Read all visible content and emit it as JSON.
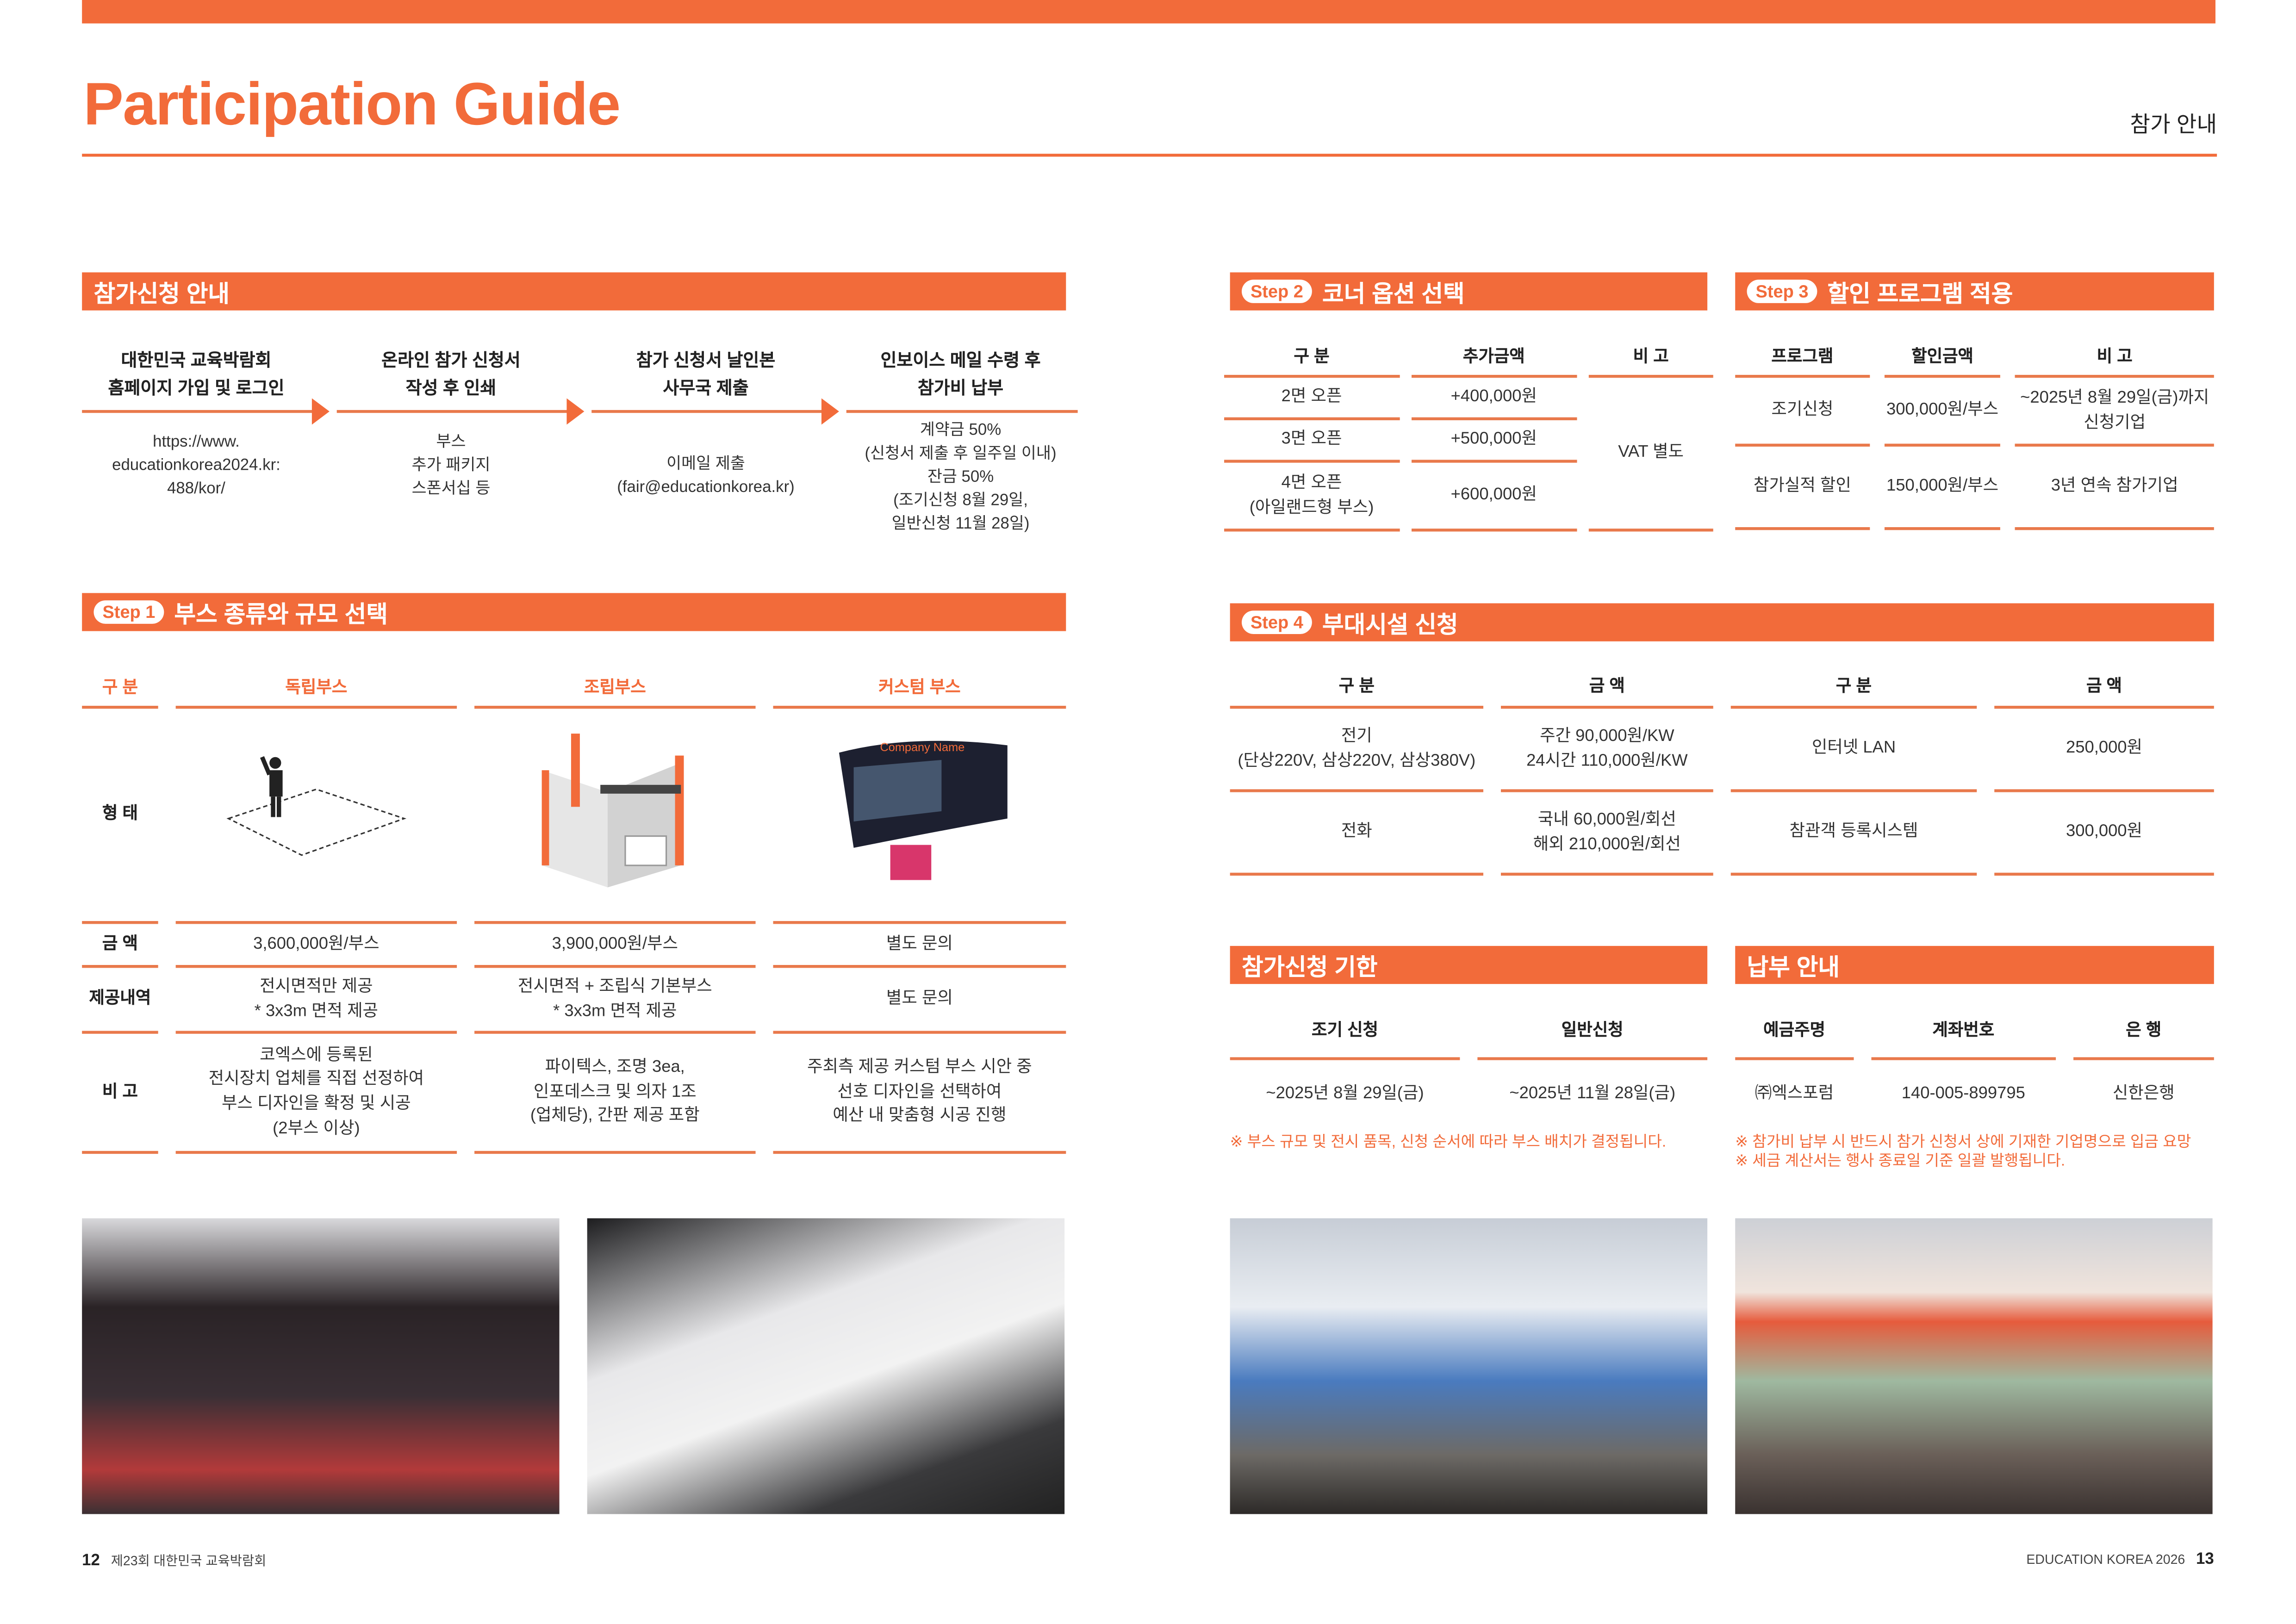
{
  "header": {
    "title": "Participation Guide",
    "subtitle": "참가 안내",
    "accent_color": "#F26B3A"
  },
  "process": {
    "heading": "참가신청 안내",
    "steps": [
      {
        "title": "대한민국 교육박람회\n홈페이지 가입 및 로그인",
        "detail": "https://www.\neducationkorea2024.kr:\n488/kor/"
      },
      {
        "title": "온라인 참가 신청서\n작성 후 인쇄",
        "detail": "부스\n추가 패키지\n스폰서십 등"
      },
      {
        "title": "참가 신청서 날인본\n사무국 제출",
        "detail": "이메일 제출\n(fair@educationkorea.kr)"
      },
      {
        "title": "인보이스 메일 수령 후\n참가비 납부",
        "detail": "계약금 50%\n(신청서 제출 후 일주일 이내)\n잔금 50%\n(조기신청 8월 29일,\n일반신청 11월 28일)"
      }
    ]
  },
  "step1": {
    "badge": "Step 1",
    "heading": "부스 종류와 규모 선택",
    "columns": [
      "구 분",
      "독립부스",
      "조립부스",
      "커스텀 부스"
    ],
    "shape_label": "형 태",
    "custom_booth_sign": "Company Name",
    "rows": [
      [
        "금 액",
        "3,600,000원/부스",
        "3,900,000원/부스",
        "별도 문의"
      ],
      [
        "제공내역",
        "전시면적만 제공\n* 3x3m 면적 제공",
        "전시면적 + 조립식 기본부스\n* 3x3m 면적 제공",
        "별도 문의"
      ],
      [
        "비 고",
        "코엑스에 등록된\n전시장치 업체를 직접 선정하여\n부스 디자인을 확정 및 시공\n(2부스 이상)",
        "파이텍스, 조명 3ea,\n인포데스크 및 의자 1조\n(업체당), 간판 제공 포함",
        "주최측 제공 커스텀 부스 시안 중\n선호 디자인을 선택하여\n예산 내 맞춤형 시공 진행"
      ]
    ]
  },
  "step2": {
    "badge": "Step 2",
    "heading": "코너 옵션 선택",
    "columns": [
      "구 분",
      "추가금액",
      "비 고"
    ],
    "rows": [
      [
        "2면 오픈",
        "+400,000원"
      ],
      [
        "3면 오픈",
        "+500,000원"
      ],
      [
        "4면 오픈\n(아일랜드형 부스)",
        "+600,000원"
      ]
    ],
    "note": "VAT 별도"
  },
  "step3": {
    "badge": "Step 3",
    "heading": "할인 프로그램 적용",
    "columns": [
      "프로그램",
      "할인금액",
      "비 고"
    ],
    "rows": [
      [
        "조기신청",
        "300,000원/부스",
        "~2025년 8월 29일(금)까지\n신청기업"
      ],
      [
        "참가실적 할인",
        "150,000원/부스",
        "3년 연속 참가기업"
      ]
    ]
  },
  "step4": {
    "badge": "Step 4",
    "heading": "부대시설 신청",
    "columns": [
      "구 분",
      "금 액",
      "구 분",
      "금 액"
    ],
    "rows": [
      [
        "전기\n(단상220V, 삼상220V, 삼상380V)",
        "주간 90,000원/KW\n24시간 110,000원/KW",
        "인터넷 LAN",
        "250,000원"
      ],
      [
        "전화",
        "국내 60,000원/회선\n해외 210,000원/회선",
        "참관객 등록시스템",
        "300,000원"
      ]
    ]
  },
  "deadline": {
    "heading": "참가신청 기한",
    "columns": [
      "조기 신청",
      "일반신청"
    ],
    "rows": [
      [
        "~2025년 8월 29일(금)",
        "~2025년 11월 28일(금)"
      ]
    ],
    "note": "※ 부스 규모 및 전시 품목, 신청 순서에 따라 부스 배치가 결정됩니다."
  },
  "payment": {
    "heading": "납부 안내",
    "columns": [
      "예금주명",
      "계좌번호",
      "은 행"
    ],
    "rows": [
      [
        "㈜엑스포럼",
        "140-005-899795",
        "신한은행"
      ]
    ],
    "notes": [
      "※ 참가비 납부 시 반드시 참가 신청서 상에 기재한 기업명으로 입금 요망",
      "※ 세금 계산서는 행사 종료일 기준 일괄 발행됩니다."
    ]
  },
  "footer": {
    "left_page": "12",
    "left_text": "제23회 대한민국 교육박람회",
    "right_text": "EDUCATION KOREA 2026",
    "right_page": "13"
  }
}
